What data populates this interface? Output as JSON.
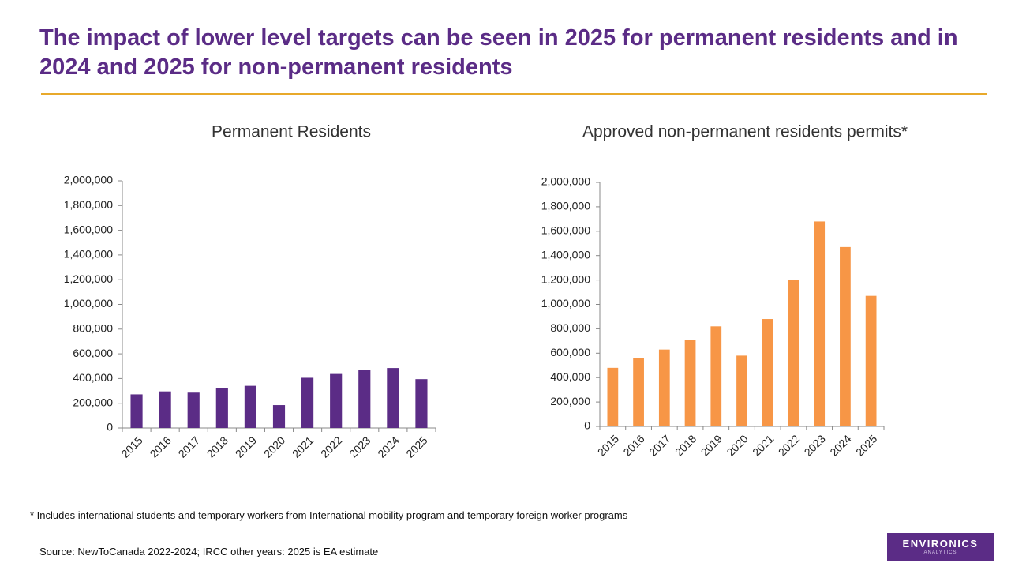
{
  "header": {
    "title": "The impact of lower level targets can be seen in 2025 for permanent residents and in 2024 and 2025 for non-permanent residents"
  },
  "chart_data": [
    {
      "type": "bar",
      "title": "Permanent Residents",
      "categories": [
        "2015",
        "2016",
        "2017",
        "2018",
        "2019",
        "2020",
        "2021",
        "2022",
        "2023",
        "2024",
        "2025"
      ],
      "values": [
        272000,
        296000,
        286000,
        321000,
        341000,
        185000,
        406000,
        437000,
        471000,
        485000,
        395000
      ],
      "color": "#5b2c86",
      "ylim": [
        0,
        2000000
      ],
      "yticks": [
        0,
        {
          "value": 200000,
          "label": "200,000"
        },
        {
          "value": 400000,
          "label": "400,000"
        },
        {
          "value": 600000,
          "label": "600,000"
        },
        {
          "value": 800000,
          "label": "800,000"
        },
        {
          "value": 1000000,
          "label": "1,000,000"
        },
        {
          "value": 1200000,
          "label": "1,200,000"
        },
        {
          "value": 1400000,
          "label": "1,400,000"
        },
        {
          "value": 1600000,
          "label": "1,600,000"
        },
        {
          "value": 1800000,
          "label": "1,800,000"
        },
        {
          "value": 2000000,
          "label": "2,000,000"
        }
      ],
      "grid": false
    },
    {
      "type": "bar",
      "title": "Approved non-permanent residents permits*",
      "categories": [
        "2015",
        "2016",
        "2017",
        "2018",
        "2019",
        "2020",
        "2021",
        "2022",
        "2023",
        "2024",
        "2025"
      ],
      "values": [
        480000,
        560000,
        630000,
        710000,
        820000,
        580000,
        880000,
        1200000,
        1680000,
        1470000,
        1070000
      ],
      "color": "#f79646",
      "ylim": [
        0,
        2000000
      ],
      "yticks": [
        0,
        {
          "value": 200000,
          "label": "200,000"
        },
        {
          "value": 400000,
          "label": "400,000"
        },
        {
          "value": 600000,
          "label": "600,000"
        },
        {
          "value": 800000,
          "label": "800,000"
        },
        {
          "value": 1000000,
          "label": "1,000,000"
        },
        {
          "value": 1200000,
          "label": "1,200,000"
        },
        {
          "value": 1400000,
          "label": "1,400,000"
        },
        {
          "value": 1600000,
          "label": "1,600,000"
        },
        {
          "value": 1800000,
          "label": "1,800,000"
        },
        {
          "value": 2000000,
          "label": "2,000,000"
        }
      ],
      "grid": false
    }
  ],
  "footnote": "* Includes international students and temporary workers from International mobility program and temporary foreign worker programs",
  "source": "Source: NewToCanada 2022-2024; IRCC other years: 2025 is EA estimate",
  "logo": {
    "name": "ENVIRONICS",
    "tagline": "ANALYTICS"
  }
}
